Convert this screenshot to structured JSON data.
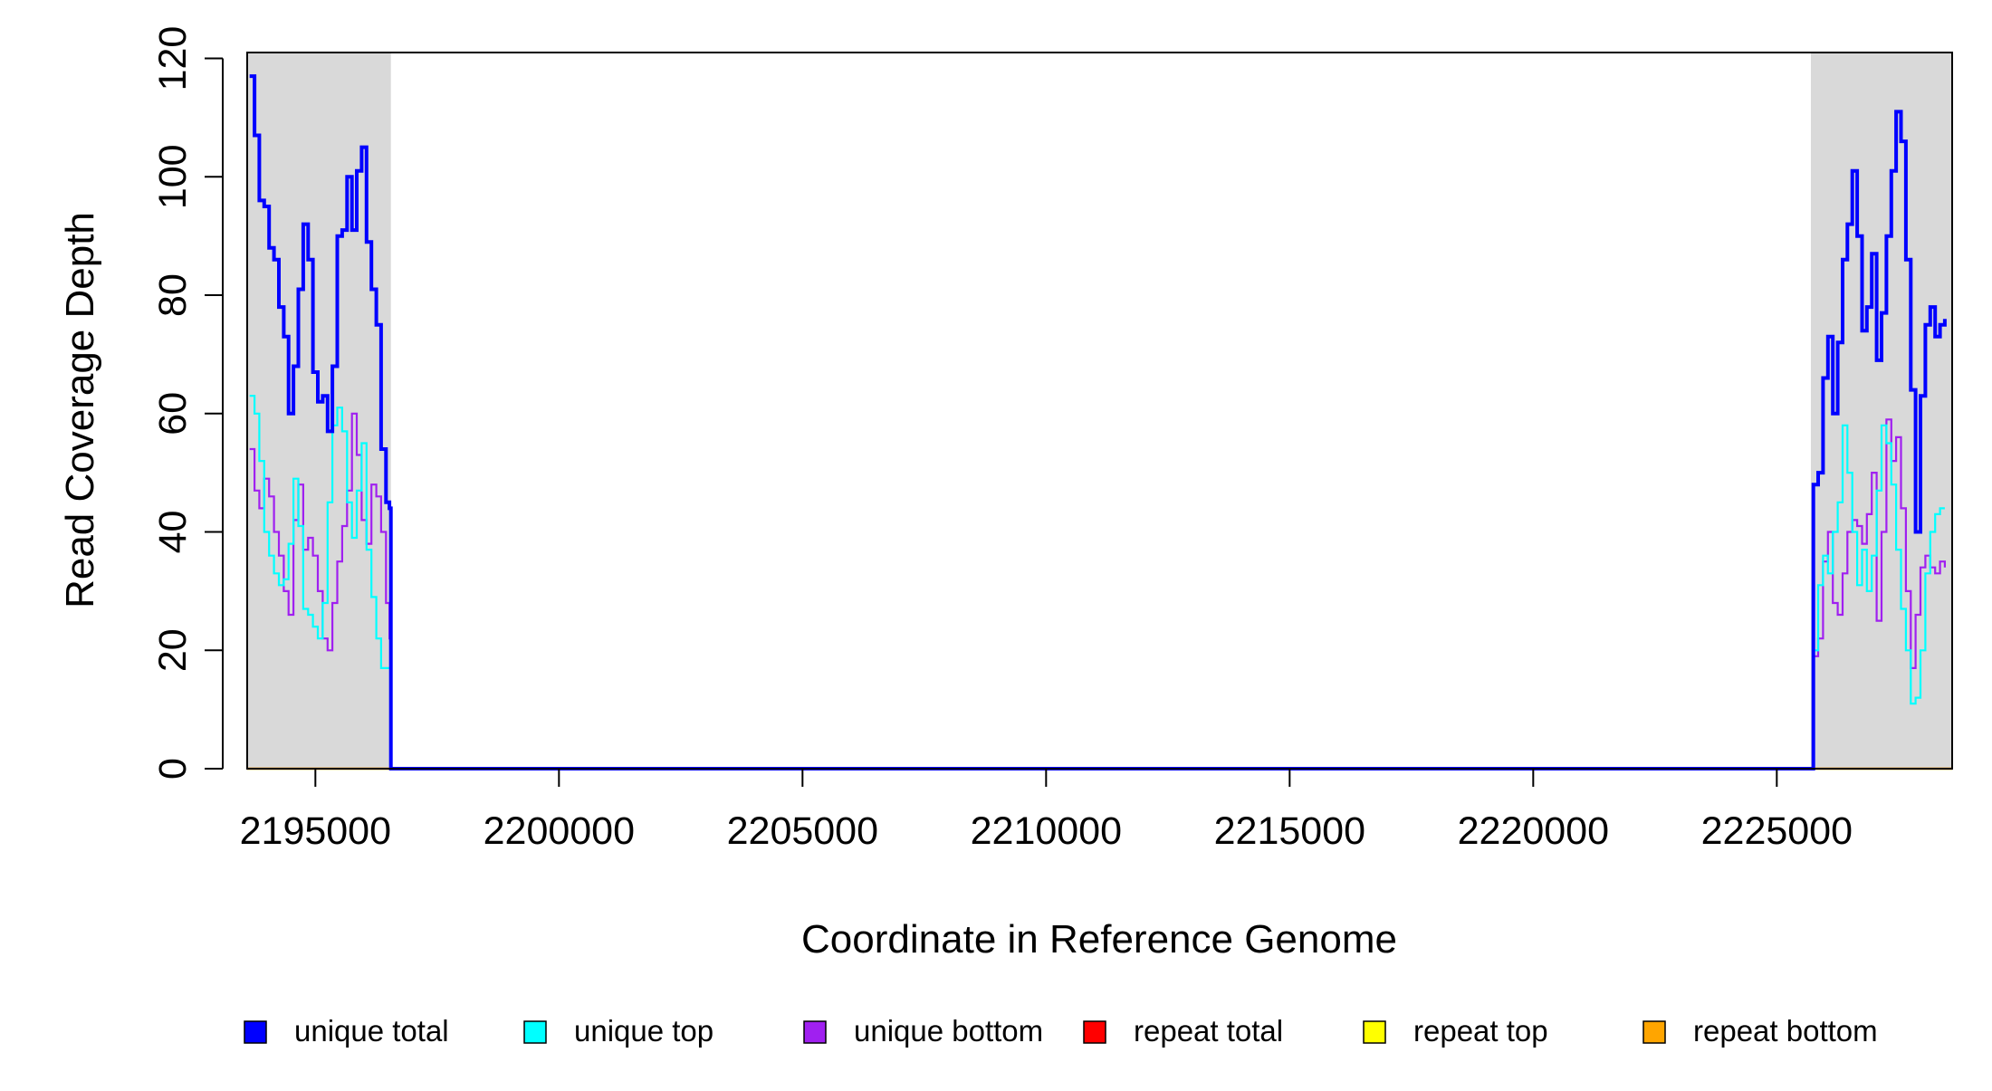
{
  "chart_data": {
    "type": "line",
    "title": "",
    "xlabel": "Coordinate in Reference Genome",
    "ylabel": "Read Coverage Depth",
    "xlim": [
      2193600,
      2228600
    ],
    "ylim": [
      0,
      121
    ],
    "x_ticks": [
      2195000,
      2200000,
      2205000,
      2210000,
      2215000,
      2220000,
      2225000
    ],
    "y_ticks": [
      0,
      20,
      40,
      60,
      80,
      100,
      120
    ],
    "grid": false,
    "legend_position": "bottom",
    "shaded_regions": [
      {
        "x_start": 2193600,
        "x_end": 2196550,
        "color": "#d9d9d9"
      },
      {
        "x_start": 2225700,
        "x_end": 2228600,
        "color": "#d9d9d9"
      }
    ],
    "series": [
      {
        "name": "unique total",
        "color": "#0000ff",
        "points": [
          [
            2193650,
            117
          ],
          [
            2193750,
            107
          ],
          [
            2193850,
            96
          ],
          [
            2193950,
            95
          ],
          [
            2194050,
            88
          ],
          [
            2194150,
            86
          ],
          [
            2194250,
            78
          ],
          [
            2194350,
            73
          ],
          [
            2194450,
            60
          ],
          [
            2194550,
            68
          ],
          [
            2194650,
            81
          ],
          [
            2194750,
            92
          ],
          [
            2194850,
            86
          ],
          [
            2194950,
            67
          ],
          [
            2195050,
            62
          ],
          [
            2195150,
            63
          ],
          [
            2195250,
            57
          ],
          [
            2195350,
            68
          ],
          [
            2195450,
            90
          ],
          [
            2195550,
            91
          ],
          [
            2195650,
            100
          ],
          [
            2195750,
            91
          ],
          [
            2195850,
            101
          ],
          [
            2195950,
            105
          ],
          [
            2196050,
            89
          ],
          [
            2196150,
            81
          ],
          [
            2196250,
            75
          ],
          [
            2196350,
            54
          ],
          [
            2196450,
            45
          ],
          [
            2196520,
            44
          ],
          [
            2196550,
            0
          ],
          [
            2225700,
            0
          ],
          [
            2225750,
            48
          ],
          [
            2225850,
            50
          ],
          [
            2225950,
            66
          ],
          [
            2226050,
            73
          ],
          [
            2226150,
            60
          ],
          [
            2226250,
            72
          ],
          [
            2226350,
            86
          ],
          [
            2226450,
            92
          ],
          [
            2226550,
            101
          ],
          [
            2226650,
            90
          ],
          [
            2226750,
            74
          ],
          [
            2226850,
            78
          ],
          [
            2226950,
            87
          ],
          [
            2227050,
            69
          ],
          [
            2227150,
            77
          ],
          [
            2227250,
            90
          ],
          [
            2227350,
            101
          ],
          [
            2227450,
            111
          ],
          [
            2227550,
            106
          ],
          [
            2227650,
            86
          ],
          [
            2227750,
            64
          ],
          [
            2227850,
            40
          ],
          [
            2227950,
            63
          ],
          [
            2228050,
            75
          ],
          [
            2228150,
            78
          ],
          [
            2228250,
            73
          ],
          [
            2228350,
            75
          ],
          [
            2228450,
            76
          ]
        ]
      },
      {
        "name": "unique top",
        "color": "#00ffff",
        "points": [
          [
            2193650,
            63
          ],
          [
            2193750,
            60
          ],
          [
            2193850,
            52
          ],
          [
            2193950,
            40
          ],
          [
            2194050,
            36
          ],
          [
            2194150,
            33
          ],
          [
            2194250,
            31
          ],
          [
            2194350,
            32
          ],
          [
            2194450,
            38
          ],
          [
            2194550,
            49
          ],
          [
            2194650,
            41
          ],
          [
            2194750,
            27
          ],
          [
            2194850,
            26
          ],
          [
            2194950,
            24
          ],
          [
            2195050,
            22
          ],
          [
            2195150,
            28
          ],
          [
            2195250,
            45
          ],
          [
            2195350,
            58
          ],
          [
            2195450,
            61
          ],
          [
            2195550,
            57
          ],
          [
            2195650,
            45
          ],
          [
            2195750,
            39
          ],
          [
            2195850,
            47
          ],
          [
            2195950,
            55
          ],
          [
            2196050,
            37
          ],
          [
            2196150,
            29
          ],
          [
            2196250,
            22
          ],
          [
            2196350,
            17
          ],
          [
            2196450,
            17
          ],
          [
            2196520,
            17
          ],
          [
            2196550,
            0
          ],
          [
            2225700,
            0
          ],
          [
            2225750,
            20
          ],
          [
            2225850,
            31
          ],
          [
            2225950,
            36
          ],
          [
            2226050,
            33
          ],
          [
            2226150,
            40
          ],
          [
            2226250,
            45
          ],
          [
            2226350,
            58
          ],
          [
            2226450,
            50
          ],
          [
            2226550,
            40
          ],
          [
            2226650,
            31
          ],
          [
            2226750,
            37
          ],
          [
            2226850,
            30
          ],
          [
            2226950,
            36
          ],
          [
            2227050,
            47
          ],
          [
            2227150,
            58
          ],
          [
            2227250,
            55
          ],
          [
            2227350,
            48
          ],
          [
            2227450,
            37
          ],
          [
            2227550,
            27
          ],
          [
            2227650,
            20
          ],
          [
            2227750,
            11
          ],
          [
            2227850,
            12
          ],
          [
            2227950,
            20
          ],
          [
            2228050,
            33
          ],
          [
            2228150,
            40
          ],
          [
            2228250,
            43
          ],
          [
            2228350,
            44
          ],
          [
            2228450,
            44
          ]
        ]
      },
      {
        "name": "unique bottom",
        "color": "#a020f0",
        "points": [
          [
            2193650,
            54
          ],
          [
            2193750,
            47
          ],
          [
            2193850,
            44
          ],
          [
            2193950,
            49
          ],
          [
            2194050,
            46
          ],
          [
            2194150,
            40
          ],
          [
            2194250,
            36
          ],
          [
            2194350,
            30
          ],
          [
            2194450,
            26
          ],
          [
            2194550,
            42
          ],
          [
            2194650,
            48
          ],
          [
            2194750,
            37
          ],
          [
            2194850,
            39
          ],
          [
            2194950,
            36
          ],
          [
            2195050,
            30
          ],
          [
            2195150,
            22
          ],
          [
            2195250,
            20
          ],
          [
            2195350,
            28
          ],
          [
            2195450,
            35
          ],
          [
            2195550,
            41
          ],
          [
            2195650,
            47
          ],
          [
            2195750,
            60
          ],
          [
            2195850,
            53
          ],
          [
            2195950,
            42
          ],
          [
            2196050,
            38
          ],
          [
            2196150,
            48
          ],
          [
            2196250,
            46
          ],
          [
            2196350,
            40
          ],
          [
            2196450,
            28
          ],
          [
            2196520,
            22
          ],
          [
            2196550,
            0
          ],
          [
            2225700,
            0
          ],
          [
            2225750,
            19
          ],
          [
            2225850,
            22
          ],
          [
            2225950,
            35
          ],
          [
            2226050,
            40
          ],
          [
            2226150,
            28
          ],
          [
            2226250,
            26
          ],
          [
            2226350,
            33
          ],
          [
            2226450,
            40
          ],
          [
            2226550,
            42
          ],
          [
            2226650,
            41
          ],
          [
            2226750,
            38
          ],
          [
            2226850,
            43
          ],
          [
            2226950,
            50
          ],
          [
            2227050,
            25
          ],
          [
            2227150,
            40
          ],
          [
            2227250,
            59
          ],
          [
            2227350,
            52
          ],
          [
            2227450,
            56
          ],
          [
            2227550,
            44
          ],
          [
            2227650,
            30
          ],
          [
            2227750,
            17
          ],
          [
            2227850,
            26
          ],
          [
            2227950,
            34
          ],
          [
            2228050,
            36
          ],
          [
            2228150,
            34
          ],
          [
            2228250,
            33
          ],
          [
            2228350,
            35
          ],
          [
            2228450,
            34
          ]
        ]
      },
      {
        "name": "repeat total",
        "color": "#ff0000",
        "points": [
          [
            2193600,
            0
          ],
          [
            2228600,
            0
          ]
        ]
      },
      {
        "name": "repeat top",
        "color": "#ffff00",
        "points": [
          [
            2193600,
            0
          ],
          [
            2228600,
            0
          ]
        ]
      },
      {
        "name": "repeat bottom",
        "color": "#ffa500",
        "points": [
          [
            2193600,
            0
          ],
          [
            2196550,
            0
          ],
          [
            2225700,
            0
          ],
          [
            2228600,
            0
          ]
        ]
      }
    ]
  }
}
